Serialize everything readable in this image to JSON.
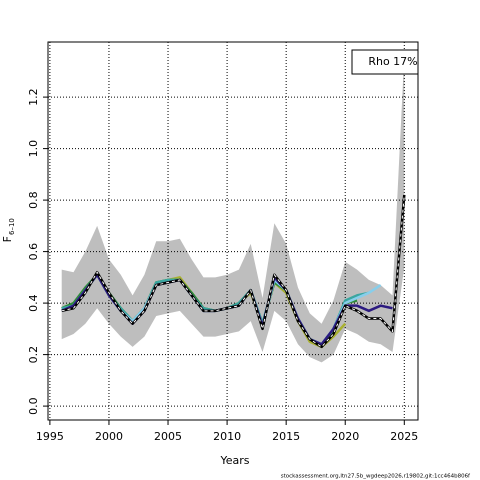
{
  "chart_data": {
    "type": "line",
    "xlabel": "Years",
    "ylabel": "F",
    "ylabel_sub": "6–10",
    "annotation": "Rho 17%",
    "footer": "stockassessment.org,ltn27.5b_wgdeep2026,r19802,git:1cc464b806f",
    "grid": true,
    "xlim": [
      1994.84,
      2026.16
    ],
    "xticks": [
      1995,
      2000,
      2005,
      2010,
      2015,
      2020,
      2025
    ],
    "ylim": [
      -0.054,
      1.414
    ],
    "yticks": [
      {
        "value": 0,
        "label": "0.0"
      },
      0.2,
      0.4,
      0.6,
      0.8,
      {
        "value": 1,
        "label": "1.0"
      },
      1.2
    ],
    "x": [
      1996,
      1997,
      1998,
      1999,
      2000,
      2001,
      2002,
      2003,
      2004,
      2005,
      2006,
      2007,
      2008,
      2009,
      2010,
      2011,
      2012,
      2013,
      2014,
      2015,
      2016,
      2017,
      2018,
      2019,
      2020,
      2021,
      2022,
      2023,
      2024,
      2025
    ],
    "band": {
      "color": "#bebebe",
      "upper": [
        0.53,
        0.52,
        0.6,
        0.7,
        0.57,
        0.51,
        0.43,
        0.51,
        0.64,
        0.64,
        0.65,
        0.57,
        0.5,
        0.5,
        0.51,
        0.53,
        0.63,
        0.42,
        0.71,
        0.63,
        0.46,
        0.36,
        0.32,
        0.41,
        0.56,
        0.53,
        0.49,
        0.47,
        0.43,
        1.36
      ],
      "lower": [
        0.26,
        0.28,
        0.32,
        0.38,
        0.32,
        0.27,
        0.23,
        0.27,
        0.35,
        0.36,
        0.37,
        0.32,
        0.27,
        0.27,
        0.28,
        0.29,
        0.33,
        0.21,
        0.37,
        0.33,
        0.24,
        0.19,
        0.17,
        0.2,
        0.3,
        0.28,
        0.25,
        0.24,
        0.21,
        0.54
      ]
    },
    "series": [
      {
        "color": "#a8b030",
        "values": [
          0.38,
          0.4,
          0.45,
          0.51,
          0.43,
          0.38,
          0.33,
          0.38,
          0.48,
          0.49,
          0.5,
          0.44,
          0.38,
          0.37,
          0.38,
          0.4,
          0.44,
          0.32,
          0.48,
          0.44,
          0.33,
          0.25,
          0.23,
          0.27,
          0.32,
          null,
          null,
          null,
          null,
          null
        ]
      },
      {
        "color": "#2e8b3a",
        "values": [
          0.38,
          0.4,
          0.46,
          0.51,
          0.44,
          0.38,
          0.33,
          0.38,
          0.48,
          0.49,
          0.49,
          0.44,
          0.38,
          0.37,
          0.38,
          0.4,
          0.45,
          0.32,
          0.48,
          0.45,
          0.34,
          0.26,
          0.24,
          0.29,
          0.4,
          0.41,
          null,
          null,
          null,
          null
        ]
      },
      {
        "color": "#3aa6a0",
        "values": [
          0.38,
          0.39,
          0.45,
          0.51,
          0.43,
          0.38,
          0.33,
          0.38,
          0.48,
          0.49,
          0.49,
          0.43,
          0.38,
          0.37,
          0.38,
          0.4,
          0.45,
          0.32,
          0.49,
          0.45,
          0.34,
          0.26,
          0.24,
          0.3,
          0.41,
          0.43,
          0.44,
          null,
          null,
          null
        ]
      },
      {
        "color": "#87ceeb",
        "values": [
          0.37,
          0.39,
          0.45,
          0.51,
          0.43,
          0.37,
          0.33,
          0.38,
          0.47,
          0.48,
          0.49,
          0.43,
          0.37,
          0.37,
          0.38,
          0.39,
          0.45,
          0.31,
          0.49,
          0.45,
          0.34,
          0.26,
          0.24,
          0.3,
          0.4,
          0.42,
          0.44,
          0.47,
          null,
          null
        ]
      },
      {
        "color": "#2c1a80",
        "values": [
          0.37,
          0.39,
          0.45,
          0.51,
          0.43,
          0.37,
          0.32,
          0.37,
          0.47,
          0.48,
          0.49,
          0.43,
          0.37,
          0.37,
          0.38,
          0.39,
          0.45,
          0.31,
          0.5,
          0.45,
          0.34,
          0.26,
          0.24,
          0.3,
          0.39,
          0.39,
          0.37,
          0.39,
          0.38,
          null
        ]
      },
      {
        "color": "#000000",
        "dashed": true,
        "values": [
          0.37,
          0.38,
          0.44,
          0.52,
          0.44,
          0.37,
          0.32,
          0.37,
          0.47,
          0.48,
          0.49,
          0.43,
          0.37,
          0.37,
          0.38,
          0.39,
          0.45,
          0.3,
          0.51,
          0.45,
          0.33,
          0.26,
          0.23,
          0.28,
          0.39,
          0.37,
          0.34,
          0.34,
          0.29,
          0.82
        ]
      }
    ]
  }
}
